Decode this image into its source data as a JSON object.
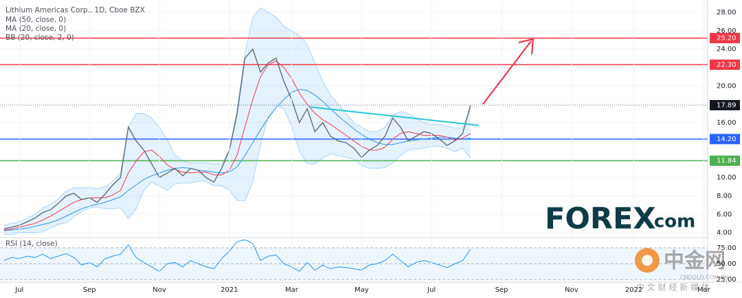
{
  "chart_data": [
    {
      "type": "line",
      "title": "Lithium Americas Corp., 1D, Cboe BZX",
      "color": "#5d606b",
      "values": [
        4.4,
        4.6,
        4.8,
        5.2,
        5.6,
        6.2,
        6.5,
        7.2,
        8.0,
        8.3,
        7.6,
        7.8,
        7.3,
        8.2,
        9.2,
        10.0,
        15.5,
        14.0,
        13.0,
        11.5,
        10.0,
        10.5,
        11.0,
        10.2,
        11.0,
        10.8,
        10.0,
        9.5,
        11.0,
        13.0,
        17.0,
        23.0,
        24.0,
        21.5,
        22.5,
        23.0,
        20.5,
        18.5,
        16.0,
        17.5,
        15.0,
        16.0,
        14.5,
        14.0,
        13.8,
        13.2,
        12.2,
        13.0,
        13.5,
        14.5,
        16.5,
        15.5,
        14.0,
        14.5,
        15.0,
        14.8,
        14.2,
        13.5,
        14.0,
        14.8,
        17.9,
        null,
        null,
        null,
        null,
        null,
        null,
        null,
        null,
        null,
        null,
        null,
        null,
        null,
        null,
        null,
        null,
        null,
        null,
        null,
        null,
        null,
        null,
        null,
        null,
        null,
        null,
        null,
        null,
        null,
        null
      ],
      "series": [
        {
          "name": "MA (50, close, 0)",
          "color": "#2196f3",
          "values": [
            4.2,
            4.3,
            4.4,
            4.5,
            4.7,
            4.9,
            5.1,
            5.4,
            5.8,
            6.2,
            6.6,
            6.9,
            7.1,
            7.3,
            7.6,
            7.9,
            8.6,
            9.2,
            9.8,
            10.2,
            10.5,
            10.8,
            11.0,
            11.1,
            11.0,
            10.8,
            10.7,
            10.6,
            10.5,
            10.6,
            11.2,
            12.4,
            13.8,
            15.2,
            16.5,
            17.6,
            18.5,
            19.3,
            19.6,
            19.5,
            19.0,
            18.3,
            17.5,
            16.7,
            16.0,
            15.3,
            14.7,
            14.2,
            13.8,
            13.6,
            13.6,
            13.8,
            14.0,
            14.1,
            14.2,
            14.3,
            14.4,
            14.4,
            14.3,
            14.2,
            14.3,
            null,
            null,
            null,
            null,
            null,
            null,
            null,
            null,
            null,
            null,
            null,
            null,
            null,
            null,
            null,
            null,
            null,
            null,
            null,
            null,
            null,
            null,
            null,
            null,
            null,
            null,
            null,
            null,
            null,
            null
          ]
        },
        {
          "name": "MA (20, close, 0)",
          "color": "#f23645",
          "values": [
            4.3,
            4.4,
            4.6,
            4.8,
            5.0,
            5.4,
            5.8,
            6.3,
            6.8,
            7.3,
            7.6,
            7.8,
            7.8,
            7.8,
            8.1,
            8.6,
            10.5,
            11.8,
            12.8,
            13.0,
            12.3,
            11.4,
            10.9,
            10.6,
            10.5,
            10.6,
            10.6,
            10.3,
            10.3,
            10.8,
            12.5,
            15.5,
            18.5,
            21.0,
            22.3,
            22.7,
            22.0,
            20.8,
            19.2,
            18.0,
            17.0,
            16.3,
            15.8,
            15.2,
            14.6,
            14.0,
            13.4,
            13.0,
            13.0,
            13.3,
            14.2,
            14.8,
            15.0,
            14.8,
            14.6,
            14.6,
            14.6,
            14.4,
            14.1,
            14.3,
            14.8,
            null,
            null,
            null,
            null,
            null,
            null,
            null,
            null,
            null,
            null,
            null,
            null,
            null,
            null,
            null,
            null,
            null,
            null,
            null,
            null,
            null,
            null,
            null,
            null,
            null,
            null,
            null,
            null,
            null,
            null
          ]
        },
        {
          "name": "BB (20, close, 2, 0)",
          "color": "#2196f3",
          "upper": [
            4.8,
            5.0,
            5.2,
            5.6,
            6.0,
            6.7,
            7.1,
            7.7,
            8.5,
            8.9,
            8.9,
            8.9,
            8.8,
            9.0,
            9.6,
            10.5,
            15.5,
            17.0,
            17.0,
            16.5,
            15.5,
            14.2,
            12.5,
            11.8,
            11.6,
            11.6,
            11.6,
            11.5,
            11.5,
            13.0,
            17.5,
            23.5,
            27.5,
            28.5,
            28.0,
            27.5,
            26.5,
            26.0,
            25.5,
            24.5,
            22.5,
            20.5,
            19.0,
            18.0,
            17.0,
            16.0,
            15.5,
            15.0,
            15.0,
            15.5,
            16.8,
            17.2,
            17.0,
            16.5,
            16.0,
            15.8,
            15.8,
            15.6,
            15.4,
            15.4,
            17.5,
            null,
            null,
            null,
            null,
            null,
            null,
            null,
            null,
            null,
            null,
            null,
            null,
            null,
            null,
            null,
            null,
            null,
            null,
            null,
            null,
            null,
            null,
            null,
            null,
            null,
            null,
            null,
            null,
            null,
            null
          ],
          "lower": [
            3.8,
            3.8,
            4.0,
            4.0,
            4.0,
            4.1,
            4.5,
            4.9,
            5.1,
            5.7,
            6.3,
            6.7,
            6.8,
            6.6,
            6.6,
            6.7,
            5.5,
            6.6,
            8.6,
            9.5,
            9.1,
            8.6,
            9.3,
            9.4,
            9.4,
            9.6,
            9.6,
            9.1,
            9.1,
            8.6,
            7.5,
            7.5,
            9.5,
            13.5,
            16.6,
            17.9,
            17.5,
            15.6,
            12.9,
            11.5,
            11.5,
            12.1,
            12.6,
            12.4,
            12.2,
            12.0,
            11.3,
            11.0,
            11.0,
            11.1,
            11.6,
            12.4,
            13.0,
            13.1,
            13.2,
            13.4,
            13.4,
            13.2,
            12.8,
            13.2,
            12.1,
            null,
            null,
            null,
            null,
            null,
            null,
            null,
            null,
            null,
            null,
            null,
            null,
            null,
            null,
            null,
            null,
            null,
            null,
            null,
            null,
            null,
            null,
            null,
            null,
            null,
            null,
            null,
            null,
            null,
            null
          ]
        }
      ],
      "levels": [
        {
          "value": 25.2,
          "label": "25.20",
          "color": "#f23645",
          "style": "solid"
        },
        {
          "value": 22.3,
          "label": "22.30",
          "color": "#f23645",
          "style": "solid"
        },
        {
          "value": 17.89,
          "label": "17.89",
          "color": "#131722",
          "style": "dotted"
        },
        {
          "value": 14.2,
          "label": "14.20",
          "color": "#2962ff",
          "style": "solid"
        },
        {
          "value": 11.84,
          "label": "11.84",
          "color": "#4caf50",
          "style": "solid"
        }
      ],
      "ylim": [
        3.6,
        28.9
      ],
      "yticks": [
        {
          "value": 4,
          "label": "4.00"
        },
        {
          "value": 6,
          "label": "6.00"
        },
        {
          "value": 8,
          "label": "8.00"
        },
        {
          "value": 10,
          "label": "10.00"
        },
        {
          "value": 12,
          "label": "12.00"
        },
        {
          "value": 14,
          "label": "14.00"
        },
        {
          "value": 16,
          "label": "16.00"
        },
        {
          "value": 18,
          "label": "18.00"
        },
        {
          "value": 20,
          "label": "20.00"
        },
        {
          "value": 22,
          "label": "22.00"
        },
        {
          "value": 24,
          "label": "24.00"
        },
        {
          "value": 26,
          "label": "26.00"
        },
        {
          "value": 28,
          "label": "28.00"
        }
      ],
      "grid": true
    },
    {
      "type": "line",
      "title": "RSI (14, close)",
      "color": "#2196f3",
      "categories": [
        null,
        null,
        "Jul",
        null,
        null,
        null,
        null,
        null,
        null,
        null,
        null,
        "Sep",
        null,
        null,
        null,
        null,
        null,
        null,
        null,
        null,
        "Nov",
        null,
        null,
        null,
        null,
        null,
        null,
        null,
        null,
        "2021",
        null,
        null,
        null,
        null,
        null,
        null,
        null,
        "Mar",
        null,
        null,
        null,
        null,
        null,
        null,
        null,
        null,
        "May",
        null,
        null,
        null,
        null,
        null,
        null,
        null,
        null,
        "Jul",
        null,
        null,
        null,
        null,
        null,
        null,
        null,
        null,
        "Sep",
        null,
        null,
        null,
        null,
        null,
        null,
        null,
        null,
        "Nov",
        null,
        null,
        null,
        null,
        null,
        null,
        null,
        "2022",
        null,
        null,
        null,
        null,
        null,
        null,
        null,
        null,
        "Mar"
      ],
      "values": [
        55,
        60,
        58,
        62,
        60,
        65,
        58,
        62,
        66,
        60,
        48,
        52,
        45,
        58,
        62,
        65,
        80,
        60,
        52,
        45,
        38,
        50,
        52,
        45,
        55,
        50,
        45,
        42,
        58,
        70,
        85,
        88,
        82,
        55,
        62,
        64,
        50,
        45,
        38,
        52,
        40,
        48,
        42,
        45,
        44,
        42,
        40,
        48,
        50,
        55,
        65,
        55,
        45,
        52,
        55,
        52,
        48,
        44,
        50,
        55,
        73,
        null,
        null,
        null,
        null,
        null,
        null,
        null,
        null,
        null,
        null,
        null,
        null,
        null,
        null,
        null,
        null,
        null,
        null,
        null,
        null,
        null,
        null,
        null,
        null,
        null,
        null,
        null,
        null,
        null,
        null
      ],
      "ylim": [
        23,
        90
      ],
      "yticks": [
        {
          "value": 75,
          "label": "75.00"
        },
        {
          "value": 50,
          "label": "50.00"
        },
        {
          "value": 25,
          "label": "25.00"
        }
      ]
    }
  ],
  "logo": {
    "name": "FOREX",
    "suffix": ".com"
  },
  "watermark": {
    "name": "中金网",
    "domain": "CNGOLD.COM.CN",
    "tagline": "中 文 财 经 新 媒 体"
  }
}
